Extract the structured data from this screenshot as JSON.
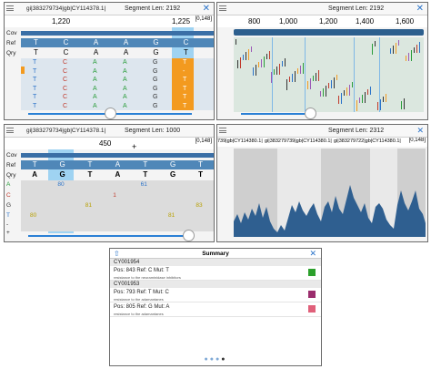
{
  "panel_tl": {
    "gi_label": "gi|383279734|gb|CY114378.1|",
    "segment_label": "Segment Len: 2192",
    "close_icon": "✕",
    "ticks": [
      "1,220",
      "1,225"
    ],
    "range": "[0,148]",
    "row_labels": [
      "Cov",
      "Ref",
      "Qry"
    ],
    "ref": [
      "T",
      "C",
      "A",
      "A",
      "G",
      "C"
    ],
    "qry": [
      "T",
      "C",
      "A",
      "A",
      "G",
      "T"
    ],
    "rows": [
      [
        "T",
        "C",
        "A",
        "A",
        "G",
        "T"
      ],
      [
        "T",
        "C",
        "A",
        "A",
        "G",
        "-"
      ],
      [
        "T",
        "C",
        "A",
        "A",
        "G",
        "T"
      ],
      [
        "T",
        "C",
        "A",
        "A",
        "G",
        "T"
      ],
      [
        "T",
        "C",
        "A",
        "A",
        "G",
        "T"
      ],
      [
        "T",
        "C",
        "A",
        "A",
        "G",
        "T"
      ]
    ]
  },
  "panel_tr": {
    "segment_label": "Segment Len: 2192",
    "close_icon": "✕",
    "ticks": [
      "800",
      "1,000",
      "1,200",
      "1,400",
      "1,600"
    ]
  },
  "panel_bl": {
    "gi_label": "gi|383279734|gb|CY114378.1|",
    "segment_label": "Segment Len: 1000",
    "range": "[0,148]",
    "tick": "450",
    "plus": "+",
    "row_labels": [
      "Cov",
      "Ref",
      "Qry",
      "A",
      "C",
      "G",
      "T",
      "-",
      "+"
    ],
    "ref": [
      "T",
      "G",
      "T",
      "A",
      "T",
      "G",
      "T"
    ],
    "qry": [
      "A",
      "G",
      "T",
      "A",
      "T",
      "G",
      "T"
    ],
    "counts": {
      "A": [
        "",
        "80",
        "",
        "",
        "61",
        "",
        ""
      ],
      "C": [
        "",
        "",
        "",
        "1",
        "",
        "",
        ""
      ],
      "G": [
        "",
        "",
        "81",
        "",
        "",
        "",
        "83"
      ],
      "T": [
        "80",
        "",
        "",
        "",
        "",
        "81",
        ""
      ]
    }
  },
  "panel_br": {
    "gi_label": "739|gb|CY114380.1|",
    "gi_labels_strip": [
      "gi|383279739|gb|CY114380.1|",
      "gi|383279722|gb|CY114380.1|"
    ],
    "segment_label": "Segment Len: 2312",
    "range": "[0,148]"
  },
  "summary": {
    "title": "Summary",
    "share_icon": "share-icon",
    "close_icon": "✕",
    "groups": [
      {
        "id": "CY001954",
        "items": [
          {
            "text": "Pos: 843 Ref: C Mut: T",
            "note": "resistance to the neuraminidase inhibitors",
            "color": "#2ca02c"
          }
        ]
      },
      {
        "id": "CY001953",
        "items": [
          {
            "text": "Pos: 793 Ref: T Mut: C",
            "note": "resistance to the adamantanes",
            "color": "#9b2d6d"
          },
          {
            "text": "Pos: 805 Ref: G Mut: A",
            "note": "resistance to the adamantanes",
            "color": "#e0607a"
          }
        ]
      }
    ],
    "page_dots": 4,
    "active_dot": 3
  }
}
